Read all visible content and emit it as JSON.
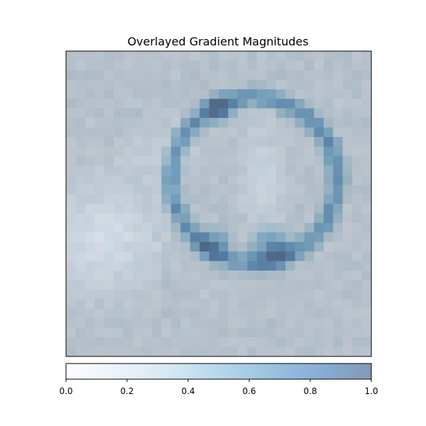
{
  "chart_data": {
    "type": "heatmap",
    "title": "Overlayed Gradient Magnitudes",
    "grid_size": [
      32,
      32
    ],
    "axes_ticks_visible": false,
    "grid": false,
    "colorbar": {
      "orientation": "horizontal",
      "placement": "bottom",
      "range": [
        0.0,
        1.0
      ],
      "tick_values": [
        0.0,
        0.2,
        0.4,
        0.6,
        0.8,
        1.0
      ],
      "tick_labels": [
        "0.0",
        "0.2",
        "0.4",
        "0.6",
        "0.8",
        "1.0"
      ],
      "colors": [
        "#f7fbff",
        "#deebf7",
        "#c6dbef",
        "#9ecae1",
        "#6baed6",
        "#4292c6",
        "#2171b5",
        "#08519c",
        "#08306b"
      ],
      "alpha": 0.5
    },
    "underlay_gray_hex": [
      "#9aa0a6",
      "#8c9298",
      "#7f858b",
      "#a8aeb4",
      "#b4bac0",
      "#c8ced4",
      "#d6dce2",
      "#e4eaf0"
    ]
  }
}
